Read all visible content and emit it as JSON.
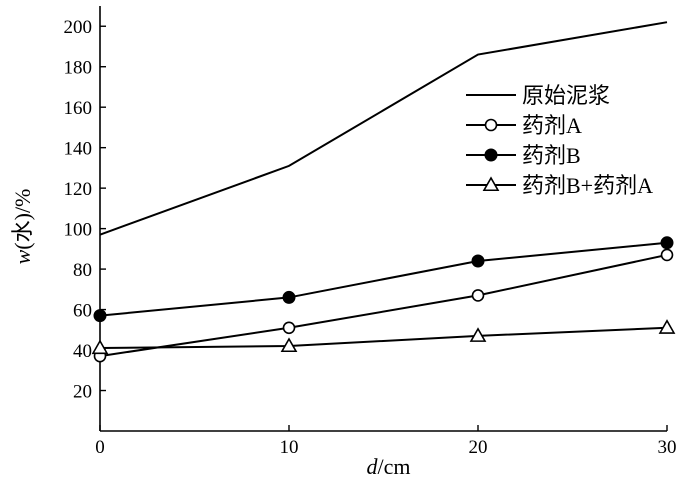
{
  "chart_data": {
    "type": "line",
    "title": "",
    "xlabel": "d/cm",
    "ylabel": "w(水)/%",
    "xlim": [
      0,
      30
    ],
    "ylim": [
      0,
      210
    ],
    "xticks": [
      0,
      10,
      20,
      30
    ],
    "yticks": [
      20,
      40,
      60,
      80,
      100,
      120,
      140,
      160,
      180,
      200
    ],
    "legend_placement": "top-right",
    "grid": false,
    "series": [
      {
        "name": "原始泥浆",
        "marker": "none",
        "x": [
          0,
          10,
          20,
          30
        ],
        "values": [
          97,
          131,
          186,
          202
        ]
      },
      {
        "name": "药剂A",
        "marker": "open-circle",
        "x": [
          0,
          10,
          20,
          30
        ],
        "values": [
          37,
          51,
          67,
          87
        ]
      },
      {
        "name": "药剂B",
        "marker": "filled-circle",
        "x": [
          0,
          10,
          20,
          30
        ],
        "values": [
          57,
          66,
          84,
          93
        ]
      },
      {
        "name": "药剂B+药剂A",
        "marker": "open-triangle",
        "x": [
          0,
          10,
          20,
          30
        ],
        "values": [
          41,
          42,
          47,
          51
        ]
      }
    ],
    "colors": {
      "line": "#000000",
      "background": "#ffffff"
    }
  }
}
